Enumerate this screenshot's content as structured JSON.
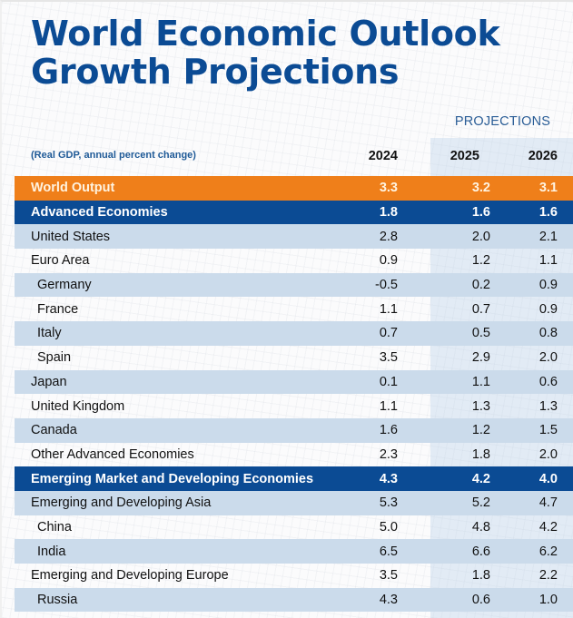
{
  "title_line1": "World Economic Outlook",
  "title_line2": "Growth Projections",
  "projections_label": "PROJECTIONS",
  "subtitle": "(Real GDP, annual percent change)",
  "columns": [
    "2024",
    "2025",
    "2026"
  ],
  "colors": {
    "title_blue": "#0b4b94",
    "world_orange": "#ef7f1a",
    "group_blue": "#0b4b94",
    "row_shade": "#cbdbeb"
  },
  "rows": [
    {
      "name": "World Output",
      "type": "world",
      "values": [
        "3.3",
        "3.2",
        "3.1"
      ]
    },
    {
      "name": "Advanced Economies",
      "type": "group",
      "values": [
        "1.8",
        "1.6",
        "1.6"
      ]
    },
    {
      "name": "United States",
      "type": "shade",
      "values": [
        "2.8",
        "2.0",
        "2.1"
      ]
    },
    {
      "name": "Euro Area",
      "type": "plain",
      "values": [
        "0.9",
        "1.2",
        "1.1"
      ]
    },
    {
      "name": "Germany",
      "type": "shade indent",
      "values": [
        "-0.5",
        "0.2",
        "0.9"
      ]
    },
    {
      "name": "France",
      "type": "plain indent",
      "values": [
        "1.1",
        "0.7",
        "0.9"
      ]
    },
    {
      "name": "Italy",
      "type": "shade indent",
      "values": [
        "0.7",
        "0.5",
        "0.8"
      ]
    },
    {
      "name": "Spain",
      "type": "plain indent",
      "values": [
        "3.5",
        "2.9",
        "2.0"
      ]
    },
    {
      "name": "Japan",
      "type": "shade",
      "values": [
        "0.1",
        "1.1",
        "0.6"
      ]
    },
    {
      "name": "United Kingdom",
      "type": "plain",
      "values": [
        "1.1",
        "1.3",
        "1.3"
      ]
    },
    {
      "name": "Canada",
      "type": "shade",
      "values": [
        "1.6",
        "1.2",
        "1.5"
      ]
    },
    {
      "name": "Other Advanced Economies",
      "type": "plain",
      "values": [
        "2.3",
        "1.8",
        "2.0"
      ]
    },
    {
      "name": "Emerging Market and Developing Economies",
      "type": "group",
      "values": [
        "4.3",
        "4.2",
        "4.0"
      ]
    },
    {
      "name": "Emerging and Developing Asia",
      "type": "shade",
      "values": [
        "5.3",
        "5.2",
        "4.7"
      ]
    },
    {
      "name": "China",
      "type": "plain indent",
      "values": [
        "5.0",
        "4.8",
        "4.2"
      ]
    },
    {
      "name": "India",
      "type": "shade indent",
      "values": [
        "6.5",
        "6.6",
        "6.2"
      ]
    },
    {
      "name": "Emerging and Developing Europe",
      "type": "plain",
      "values": [
        "3.5",
        "1.8",
        "2.2"
      ]
    },
    {
      "name": "Russia",
      "type": "shade indent",
      "values": [
        "4.3",
        "0.6",
        "1.0"
      ]
    }
  ]
}
